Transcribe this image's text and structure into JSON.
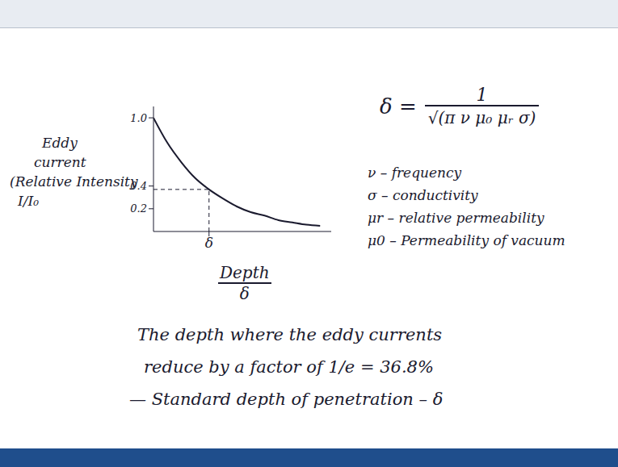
{
  "chart_data": {
    "type": "line",
    "y_label": [
      "Eddy",
      "current",
      "(Relative Intensity",
      "I/I₀"
    ],
    "x_label": [
      "Depth",
      "δ"
    ],
    "x": [
      0,
      0.25,
      0.5,
      0.75,
      1,
      1.25,
      1.5,
      1.75,
      2,
      2.25,
      2.5,
      2.75,
      3
    ],
    "values": [
      1.0,
      0.78,
      0.61,
      0.47,
      0.37,
      0.29,
      0.22,
      0.17,
      0.14,
      0.1,
      0.08,
      0.06,
      0.05
    ],
    "color": "#1a1a2e",
    "xlim": [
      0,
      3.2
    ],
    "xticks": [
      {
        "value": 1,
        "label": "δ"
      }
    ],
    "ylim": [
      0,
      1.1
    ],
    "yticks": [
      0.2,
      0.4,
      {
        "value": 1,
        "label": "1.0"
      }
    ],
    "reference_lines": [
      {
        "x": 1,
        "y": 0.37
      }
    ],
    "line_style": "solid",
    "marker": "none",
    "grid": false,
    "tick_labels": true
  },
  "formula": {
    "lhs": "δ =",
    "numerator": "1",
    "denominator": "√(π ν μ₀ μᵣ σ)"
  },
  "symbols": [
    {
      "symbol": "ν",
      "meaning": "frequency"
    },
    {
      "symbol": "σ",
      "meaning": "conductivity"
    },
    {
      "symbol": "μr",
      "meaning": "relative permeability"
    },
    {
      "symbol": "μ0",
      "meaning": "Permeability of vacuum"
    }
  ],
  "notes": [
    "The depth where the eddy currents",
    "reduce by a factor of 1/e = 36.8%",
    "— Standard depth of penetration – δ"
  ]
}
